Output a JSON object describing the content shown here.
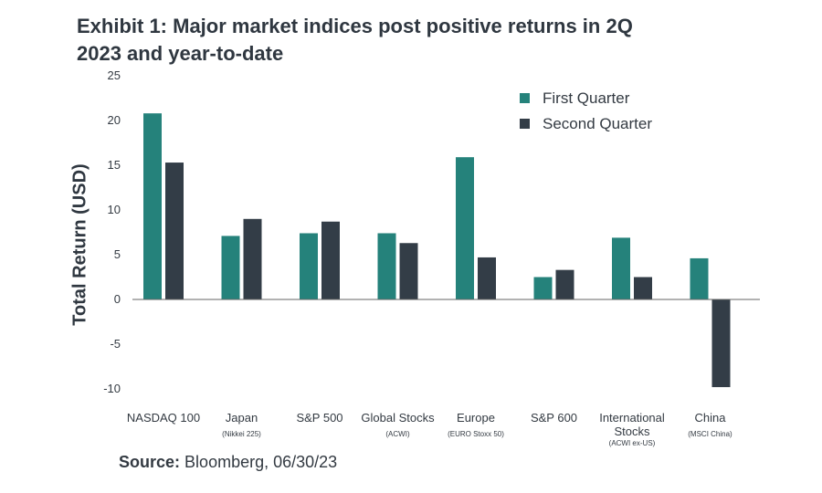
{
  "title": "Exhibit 1: Major market indices post positive returns in 2Q 2023 and year-to-date",
  "source": {
    "label": "Source:",
    "text": "Bloomberg, 06/30/23"
  },
  "colors": {
    "first_quarter": "#25827b",
    "second_quarter": "#333d47",
    "axis": "#666666"
  },
  "chart_data": {
    "type": "bar",
    "title": "Exhibit 1: Major market indices post positive returns in 2Q 2023 and year-to-date",
    "ylabel": "Total Return (USD)",
    "xlabel": "",
    "ylim": [
      -10,
      25
    ],
    "yticks": [
      25,
      20,
      15,
      10,
      5,
      0,
      -5,
      -10
    ],
    "grid": false,
    "legend_position": "top-right",
    "categories": [
      {
        "label": "NASDAQ 100",
        "sub": ""
      },
      {
        "label": "Japan",
        "sub": "(Nikkei 225)"
      },
      {
        "label": "S&P 500",
        "sub": ""
      },
      {
        "label": "Global Stocks",
        "sub": "(ACWI)"
      },
      {
        "label": "Europe",
        "sub": "(EURO Stoxx 50)"
      },
      {
        "label": "S&P 600",
        "sub": ""
      },
      {
        "label": "International\nStocks",
        "sub": "(ACWI ex-US)"
      },
      {
        "label": "China",
        "sub": "(MSCI China)"
      }
    ],
    "series": [
      {
        "name": "First Quarter",
        "values": [
          20.8,
          7.1,
          7.4,
          7.4,
          15.9,
          2.5,
          6.9,
          4.6
        ]
      },
      {
        "name": "Second Quarter",
        "values": [
          15.3,
          9.0,
          8.7,
          6.3,
          4.7,
          3.3,
          2.5,
          -9.8
        ]
      }
    ]
  }
}
